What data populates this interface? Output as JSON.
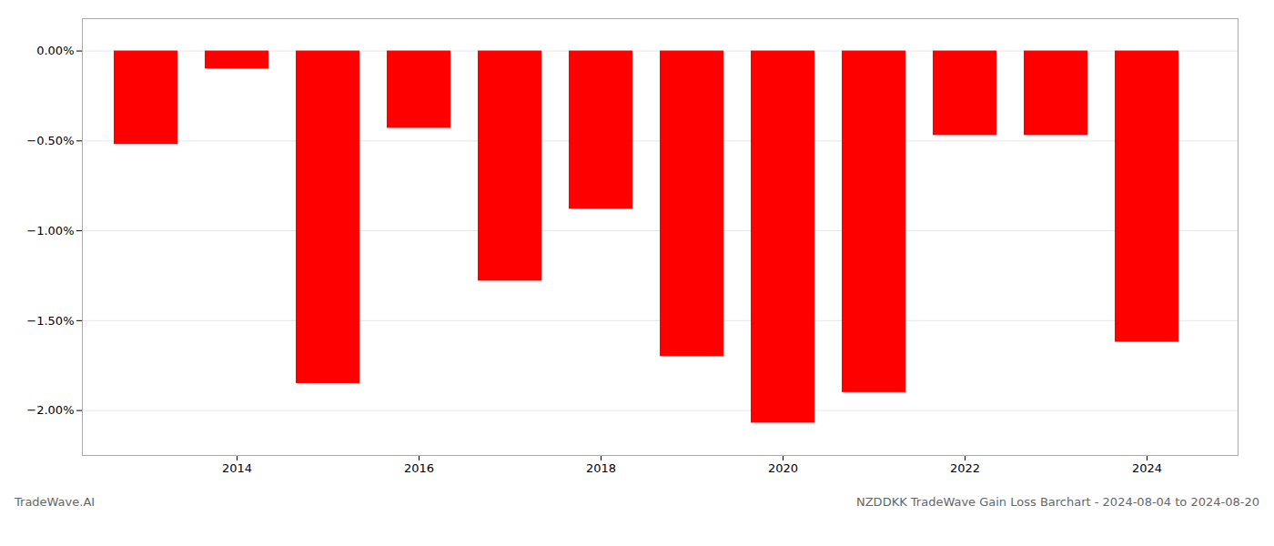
{
  "chart_data": {
    "type": "bar",
    "title": "NZDDKK TradeWave Gain Loss Barchart - 2024-08-04 to 2024-08-20",
    "annotations": [
      "TradeWave.AI"
    ],
    "x": [
      2013,
      2014,
      2015,
      2016,
      2017,
      2018,
      2019,
      2020,
      2021,
      2022,
      2023,
      2024
    ],
    "values": [
      -0.52,
      -0.1,
      -1.85,
      -0.43,
      -1.28,
      -0.88,
      -1.7,
      -2.07,
      -1.9,
      -0.47,
      -0.47,
      -1.62
    ],
    "color": "#ff0000",
    "xlim": [
      2012.3,
      2025.0
    ],
    "xticks": [
      2014,
      2016,
      2018,
      2020,
      2022,
      2024
    ],
    "ylim": [
      -2.25,
      0.18
    ],
    "yticks": [
      {
        "value": 0.0,
        "label": "0.00%"
      },
      {
        "value": -0.5,
        "label": "−0.50%"
      },
      {
        "value": -1.0,
        "label": "−1.00%"
      },
      {
        "value": -1.5,
        "label": "−1.50%"
      },
      {
        "value": -2.0,
        "label": "−2.00%"
      }
    ],
    "grid": true
  }
}
